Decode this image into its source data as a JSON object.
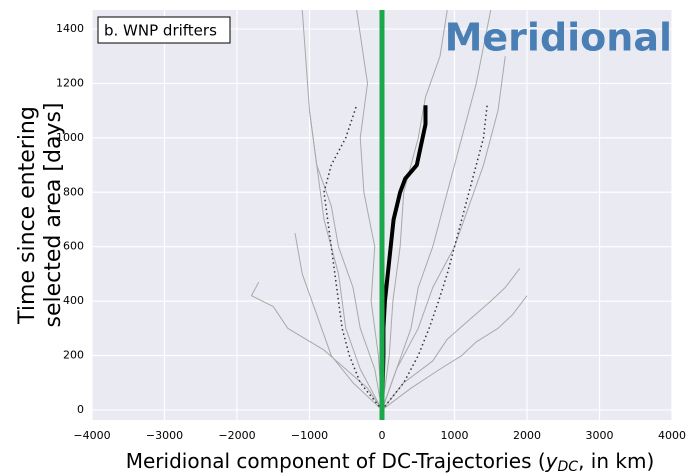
{
  "chart_data": {
    "type": "line",
    "panel_label": "b. WNP drifters",
    "annotation": "Meridional",
    "y_label": [
      "Time since entering",
      "selected area [days]"
    ],
    "x_label": [
      "Meridional component of DC-Trajectories (",
      "y",
      "DC",
      ", in km)"
    ],
    "xlim": [
      -4000,
      4000
    ],
    "ylim": [
      -37,
      1470
    ],
    "xticks": [
      {
        "value": -4000,
        "label": "−4000"
      },
      {
        "value": -3000,
        "label": "−3000"
      },
      {
        "value": -2000,
        "label": "−2000"
      },
      {
        "value": -1000,
        "label": "−1000"
      },
      0,
      1000,
      2000,
      3000,
      4000
    ],
    "yticks": [
      0,
      200,
      400,
      600,
      800,
      1000,
      1200,
      1400
    ],
    "grid": true,
    "reference_x": 0,
    "reference_color": "#1aa84a",
    "series": [
      {
        "color": "#a9a9a9",
        "style": "solid",
        "width": 1,
        "x": [
          0,
          -200,
          -500,
          -800,
          -1300,
          -1500,
          -1800,
          -1700
        ],
        "y": [
          0,
          80,
          150,
          220,
          300,
          380,
          420,
          470
        ]
      },
      {
        "color": "#a9a9a9",
        "style": "solid",
        "width": 1,
        "x": [
          0,
          300,
          700,
          900,
          1200,
          1500,
          1700,
          1900
        ],
        "y": [
          0,
          100,
          180,
          260,
          330,
          400,
          450,
          520
        ]
      },
      {
        "color": "#a9a9a9",
        "style": "solid",
        "width": 1,
        "x": [
          0,
          -100,
          -300,
          -400,
          -600,
          -700,
          -900,
          -1000,
          -1100
        ],
        "y": [
          0,
          150,
          300,
          450,
          600,
          750,
          900,
          1100,
          1470
        ]
      },
      {
        "color": "#a9a9a9",
        "style": "solid",
        "width": 1,
        "x": [
          0,
          200,
          400,
          500,
          700,
          900,
          1100,
          1300,
          1500
        ],
        "y": [
          0,
          150,
          300,
          450,
          600,
          800,
          1000,
          1200,
          1470
        ]
      },
      {
        "color": "#a9a9a9",
        "style": "solid",
        "width": 1,
        "x": [
          0,
          100,
          150,
          250,
          300,
          500,
          600,
          800,
          900
        ],
        "y": [
          0,
          200,
          400,
          600,
          800,
          1000,
          1150,
          1300,
          1470
        ]
      },
      {
        "color": "#a9a9a9",
        "style": "solid",
        "width": 1,
        "x": [
          0,
          -50,
          -150,
          -100,
          -250,
          -300,
          -200,
          -350
        ],
        "y": [
          0,
          200,
          400,
          600,
          800,
          1000,
          1200,
          1470
        ]
      },
      {
        "color": "#a9a9a9",
        "style": "solid",
        "width": 1,
        "x": [
          0,
          400,
          800,
          1100,
          1300,
          1600,
          1800,
          2000
        ],
        "y": [
          0,
          80,
          150,
          200,
          250,
          300,
          350,
          420
        ]
      },
      {
        "color": "#a9a9a9",
        "style": "solid",
        "width": 1,
        "x": [
          0,
          -400,
          -700,
          -900,
          -1100,
          -1200
        ],
        "y": [
          0,
          100,
          200,
          350,
          500,
          650
        ]
      },
      {
        "color": "#a9a9a9",
        "style": "solid",
        "width": 1,
        "x": [
          0,
          200,
          500,
          700,
          1000,
          1200,
          1400,
          1600,
          1700
        ],
        "y": [
          0,
          150,
          300,
          450,
          600,
          750,
          900,
          1100,
          1300
        ]
      },
      {
        "color": "#a9a9a9",
        "style": "solid",
        "width": 1,
        "x": [
          0,
          -300,
          -500,
          -600,
          -800,
          -900,
          -1000
        ],
        "y": [
          0,
          150,
          300,
          500,
          700,
          900,
          1100
        ]
      },
      {
        "color": "#333333",
        "style": "dotted",
        "width": 1.5,
        "x": [
          0,
          300,
          500,
          650,
          780,
          900,
          1000,
          1100,
          1200,
          1300,
          1400,
          1450
        ],
        "y": [
          0,
          100,
          200,
          300,
          400,
          500,
          600,
          700,
          800,
          900,
          1000,
          1120
        ]
      },
      {
        "color": "#333333",
        "style": "dotted",
        "width": 1.5,
        "x": [
          0,
          -300,
          -450,
          -550,
          -600,
          -650,
          -700,
          -750,
          -800,
          -700,
          -500,
          -350
        ],
        "y": [
          0,
          100,
          200,
          300,
          400,
          500,
          600,
          700,
          800,
          900,
          1000,
          1120
        ]
      },
      {
        "color": "#000000",
        "style": "solid",
        "width": 4,
        "x": [
          0,
          10,
          20,
          20,
          40,
          80,
          120,
          160,
          250,
          320,
          480,
          520,
          560,
          600,
          600
        ],
        "y": [
          0,
          100,
          200,
          300,
          400,
          500,
          600,
          700,
          800,
          850,
          900,
          950,
          1000,
          1050,
          1120
        ]
      }
    ]
  }
}
